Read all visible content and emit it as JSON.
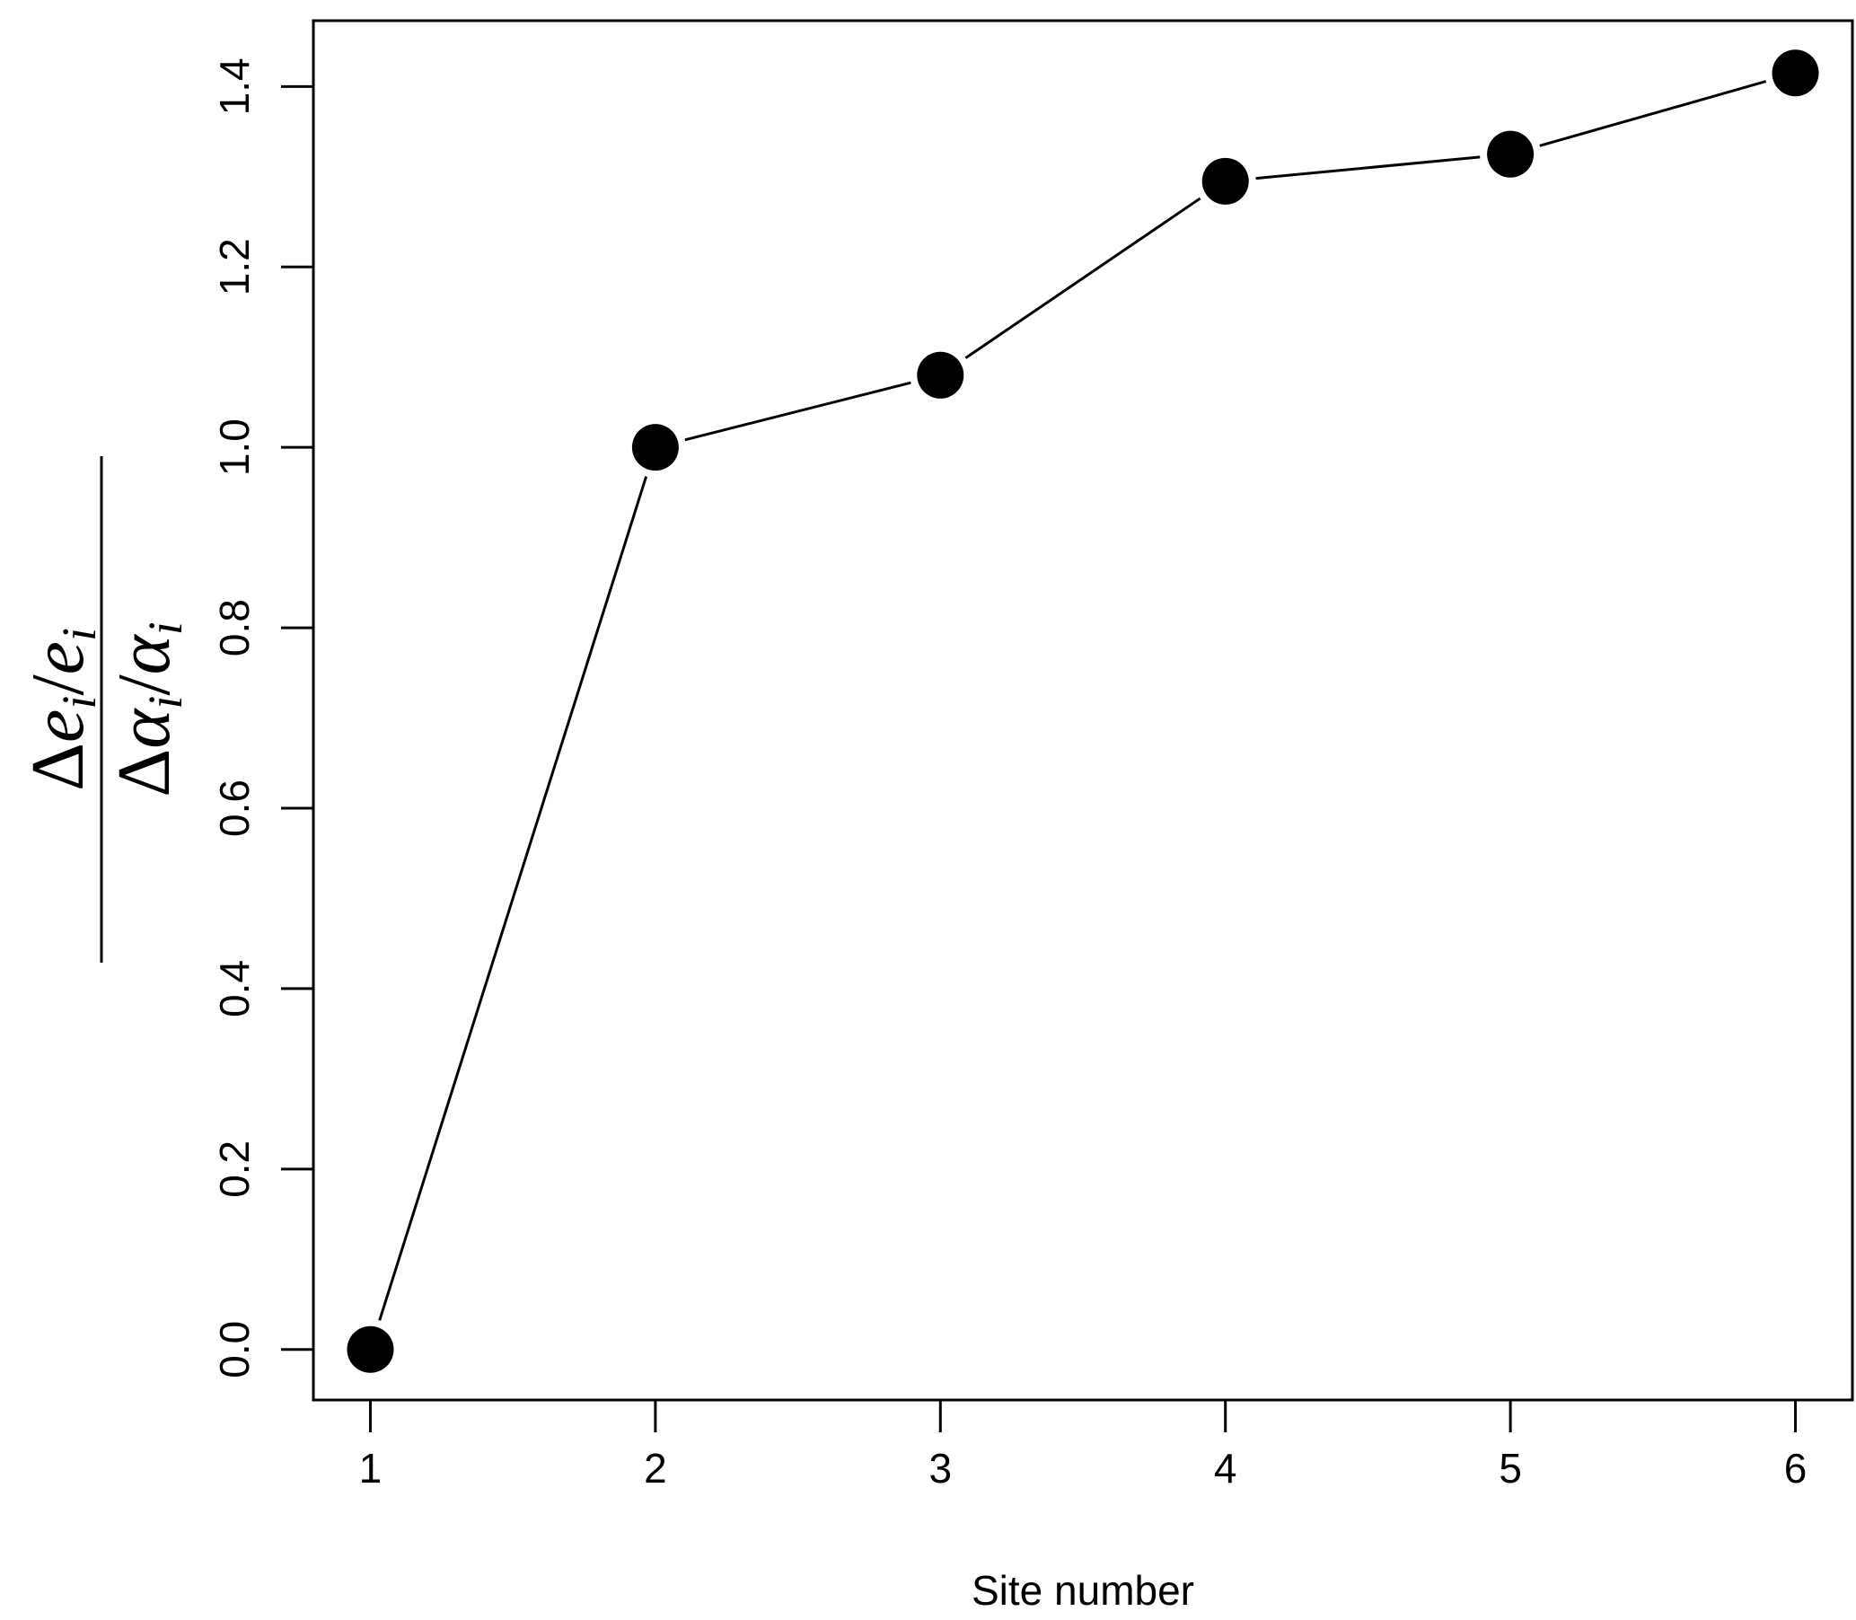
{
  "chart_data": {
    "type": "line",
    "x": [
      1,
      2,
      3,
      4,
      5,
      6
    ],
    "y": [
      0.0,
      1.0,
      1.08,
      1.295,
      1.325,
      1.415
    ],
    "xlabel": "Site number",
    "ylabel": {
      "numerator": "Δe_i/e_i",
      "denominator": "Δα_i/α_i",
      "numerator_parts": {
        "delta": "Δ",
        "a": "e",
        "sub_a": "i",
        "slash": "/",
        "b": "e",
        "sub_b": "i"
      },
      "denominator_parts": {
        "delta": "Δ",
        "a": "α",
        "sub_a": "i",
        "slash": "/",
        "b": "α",
        "sub_b": "i"
      }
    },
    "xticks": [
      "1",
      "2",
      "3",
      "4",
      "5",
      "6"
    ],
    "yticks": [
      "0.0",
      "0.2",
      "0.4",
      "0.6",
      "0.8",
      "1.0",
      "1.2",
      "1.4"
    ],
    "xlim": [
      0.8,
      6.2
    ],
    "ylim": [
      -0.056,
      1.473
    ],
    "marker": "filled-circle",
    "line_color": "#000000",
    "marker_color": "#000000",
    "grid": false,
    "legend": "none"
  }
}
